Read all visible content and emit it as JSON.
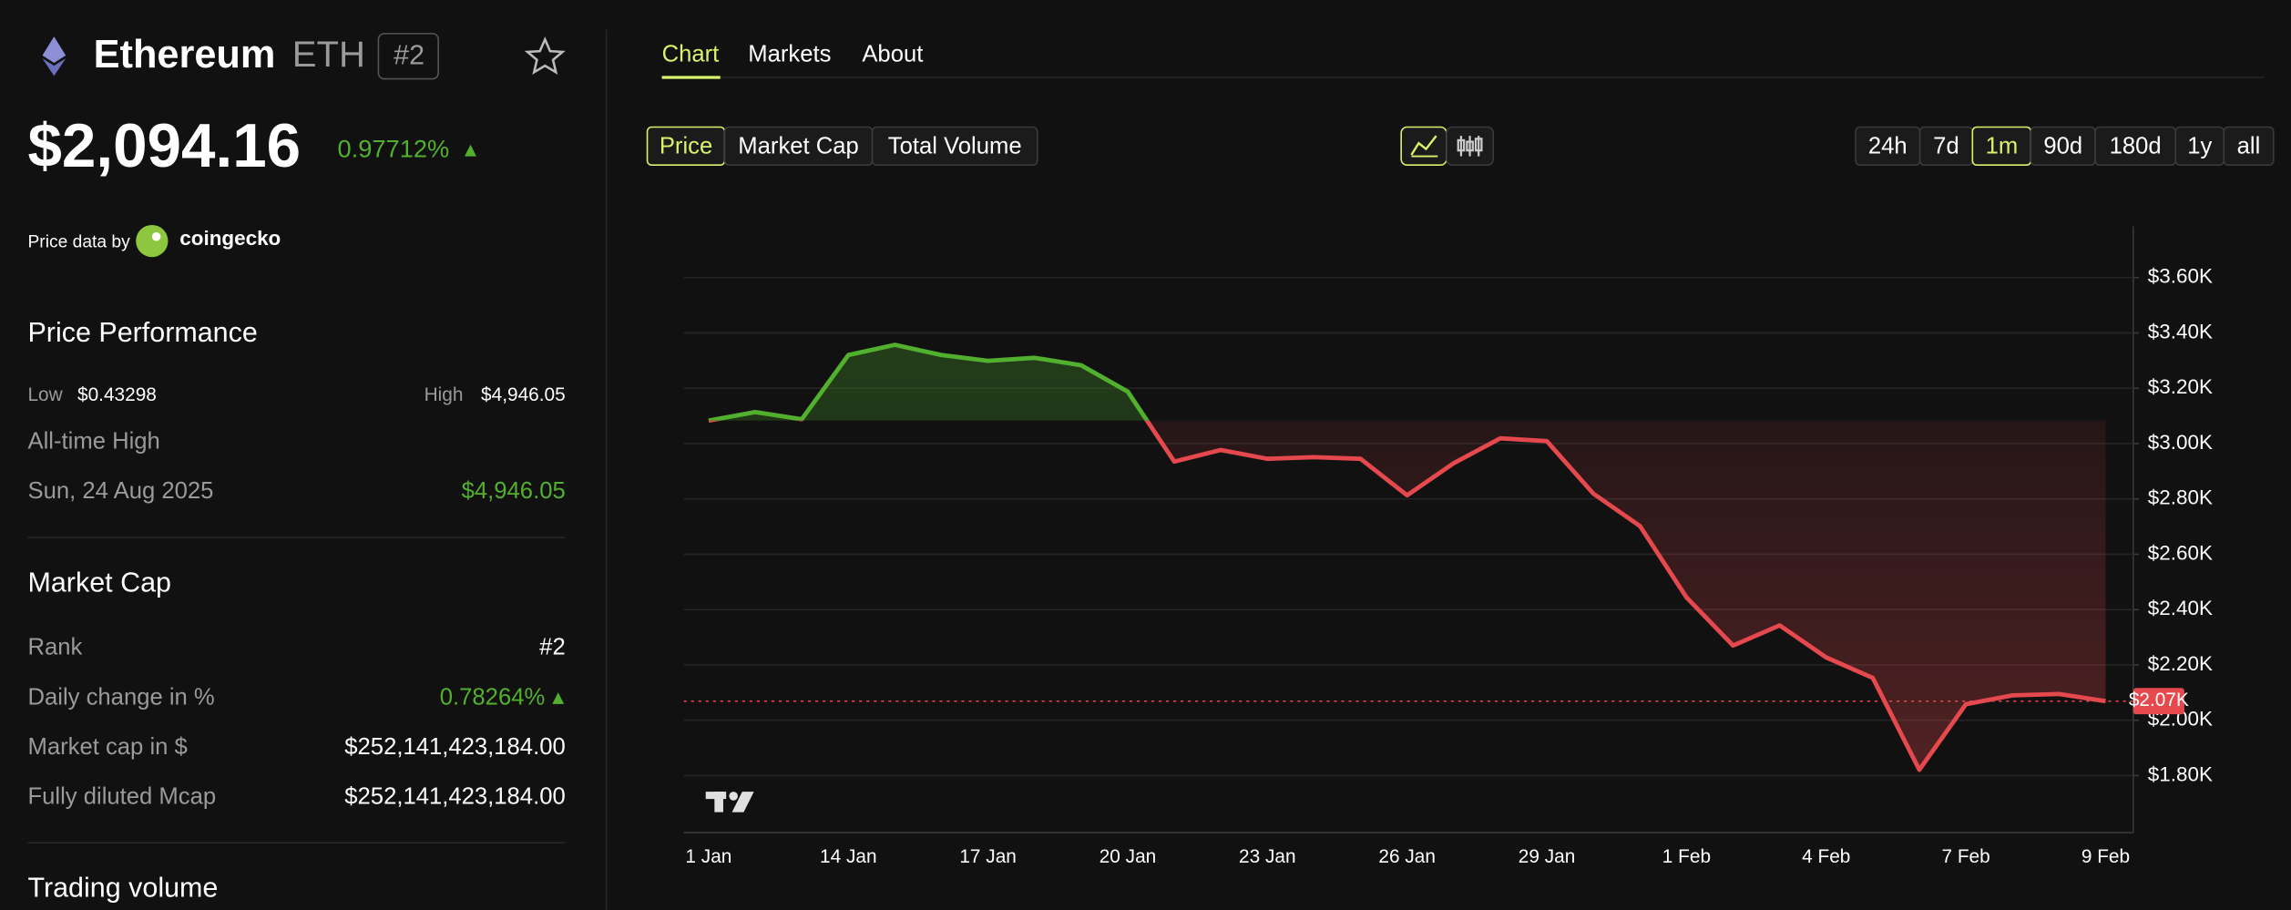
{
  "header": {
    "name": "Ethereum",
    "symbol": "ETH",
    "rank": "#2",
    "price": "$2,094.16",
    "change": "0.97712%",
    "price_data_by": "Price data by",
    "provider": "coingecko"
  },
  "performance": {
    "title": "Price Performance",
    "low_label": "Low",
    "low": "$0.43298",
    "high_label": "High",
    "high": "$4,946.05",
    "ath_label": "All-time High",
    "ath_date": "Sun, 24 Aug 2025",
    "ath_value": "$4,946.05"
  },
  "market_cap": {
    "title": "Market Cap",
    "rows": [
      [
        "Rank",
        "#2"
      ],
      [
        "Daily change in %",
        "0.78264%"
      ],
      [
        "Market cap in $",
        "$252,141,423,184.00"
      ],
      [
        "Fully diluted Mcap",
        "$252,141,423,184.00"
      ]
    ]
  },
  "trading_volume": {
    "title": "Trading volume"
  },
  "tabs": [
    "Chart",
    "Markets",
    "About"
  ],
  "metric_buttons": [
    "Price",
    "Market Cap",
    "Total Volume"
  ],
  "ranges": [
    "24h",
    "7d",
    "1m",
    "90d",
    "180d",
    "1y",
    "all"
  ],
  "chart_data": {
    "type": "line",
    "categories": [
      "1 Jan",
      null,
      null,
      "14 Jan",
      null,
      null,
      "17 Jan",
      null,
      null,
      "20 Jan",
      null,
      null,
      "23 Jan",
      null,
      null,
      "26 Jan",
      null,
      null,
      "29 Jan",
      null,
      null,
      "1 Feb",
      null,
      null,
      "4 Feb",
      null,
      null,
      "7 Feb",
      null,
      null,
      "9 Feb"
    ],
    "series": [
      {
        "name": "Price",
        "up_color": "#52b02f",
        "down_color": "#e5484d",
        "values": [
          3083,
          3114,
          3088,
          3320,
          3357,
          3320,
          3299,
          3310,
          3283,
          3188,
          2935,
          2977,
          2945,
          2951,
          2945,
          2813,
          2929,
          3019,
          3009,
          2819,
          2702,
          2444,
          2270,
          2343,
          2227,
          2153,
          1821,
          2058,
          2090,
          2095,
          2069
        ]
      }
    ],
    "current_label": "$2.07K",
    "ylim": [
      1594,
      3785
    ],
    "yticks": [
      {
        "value": 1800,
        "label": "$1.80K"
      },
      {
        "value": 2000,
        "label": "$2.00K"
      },
      {
        "value": 2200,
        "label": "$2.20K"
      },
      {
        "value": 2400,
        "label": "$2.40K"
      },
      {
        "value": 2600,
        "label": "$2.60K"
      },
      {
        "value": 2800,
        "label": "$2.80K"
      },
      {
        "value": 3000,
        "label": "$3.00K"
      },
      {
        "value": 3200,
        "label": "$3.20K"
      },
      {
        "value": 3400,
        "label": "$3.40K"
      },
      {
        "value": 3600,
        "label": "$3.60K"
      }
    ],
    "grid": true
  }
}
